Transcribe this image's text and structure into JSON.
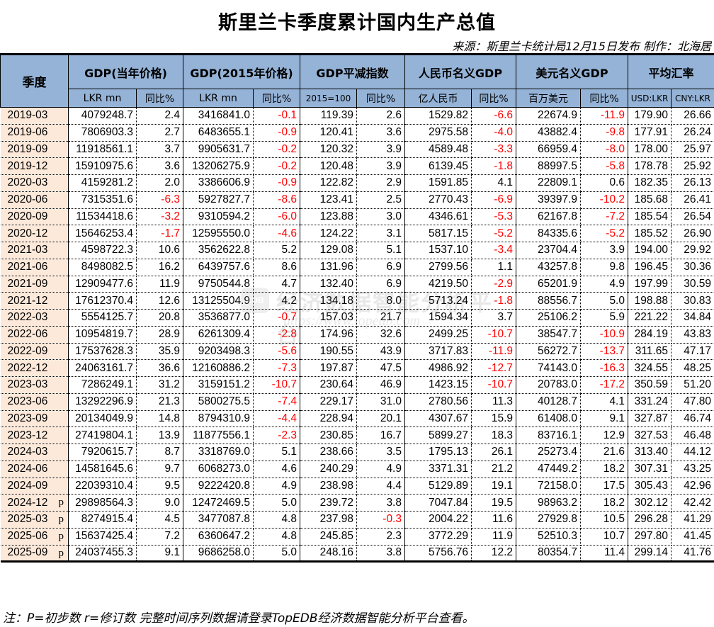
{
  "title": "斯里兰卡季度累计国内生产总值",
  "source": "来源：斯里兰卡统计局12月15日发布 制作：北海居",
  "header": {
    "quarter": "季度",
    "groups": [
      {
        "label": "GDP(当年价格)",
        "sub": [
          "LKR mn",
          "同比%"
        ]
      },
      {
        "label": "GDP(2015年价格)",
        "sub": [
          "LKR mn",
          "同比%"
        ]
      },
      {
        "label": "GDP平减指数",
        "sub": [
          "2015=100",
          "同比%"
        ]
      },
      {
        "label": "人民币名义GDP",
        "sub": [
          "亿人民币",
          "同比%"
        ]
      },
      {
        "label": "美元名义GDP",
        "sub": [
          "百万美元",
          "同比%"
        ]
      },
      {
        "label": "平均汇率",
        "sub": [
          "USD:LKR",
          "CNY:LKR"
        ]
      }
    ]
  },
  "rows": [
    {
      "q": "2019-03",
      "flag": "",
      "v": [
        "4079248.7",
        "2.4",
        "3416841.0",
        "-0.1",
        "119.39",
        "2.6",
        "1529.82",
        "-6.6",
        "22674.9",
        "-11.9",
        "179.90",
        "26.66"
      ]
    },
    {
      "q": "2019-06",
      "flag": "",
      "v": [
        "7806903.3",
        "2.7",
        "6483655.1",
        "-0.9",
        "120.41",
        "3.6",
        "2975.58",
        "-4.0",
        "43882.4",
        "-9.8",
        "177.91",
        "26.24"
      ]
    },
    {
      "q": "2019-09",
      "flag": "",
      "v": [
        "11918561.1",
        "3.7",
        "9905631.7",
        "-0.2",
        "120.32",
        "3.9",
        "4589.48",
        "-3.3",
        "66959.4",
        "-8.0",
        "178.00",
        "25.97"
      ]
    },
    {
      "q": "2019-12",
      "flag": "",
      "v": [
        "15910975.6",
        "3.6",
        "13206275.9",
        "-0.2",
        "120.48",
        "3.9",
        "6139.45",
        "-1.8",
        "88997.5",
        "-5.8",
        "178.78",
        "25.92"
      ]
    },
    {
      "q": "2020-03",
      "flag": "",
      "v": [
        "4159281.2",
        "2.0",
        "3386606.9",
        "-0.9",
        "122.82",
        "2.9",
        "1591.85",
        "4.1",
        "22809.1",
        "0.6",
        "182.35",
        "26.13"
      ]
    },
    {
      "q": "2020-06",
      "flag": "",
      "v": [
        "7315351.6",
        "-6.3",
        "5927827.7",
        "-8.6",
        "123.41",
        "2.5",
        "2770.43",
        "-6.9",
        "39397.9",
        "-10.2",
        "185.68",
        "26.41"
      ]
    },
    {
      "q": "2020-09",
      "flag": "",
      "v": [
        "11534418.6",
        "-3.2",
        "9310594.2",
        "-6.0",
        "123.88",
        "3.0",
        "4346.61",
        "-5.3",
        "62167.8",
        "-7.2",
        "185.54",
        "26.54"
      ]
    },
    {
      "q": "2020-12",
      "flag": "",
      "v": [
        "15646253.4",
        "-1.7",
        "12595550.0",
        "-4.6",
        "124.22",
        "3.1",
        "5817.15",
        "-5.2",
        "84335.6",
        "-5.2",
        "185.52",
        "26.90"
      ]
    },
    {
      "q": "2021-03",
      "flag": "",
      "v": [
        "4598722.3",
        "10.6",
        "3562622.8",
        "5.2",
        "129.08",
        "5.1",
        "1537.10",
        "-3.4",
        "23704.4",
        "3.9",
        "194.00",
        "29.92"
      ]
    },
    {
      "q": "2021-06",
      "flag": "",
      "v": [
        "8498082.5",
        "16.2",
        "6439757.6",
        "8.6",
        "131.96",
        "6.9",
        "2799.56",
        "1.1",
        "43257.8",
        "9.8",
        "196.45",
        "30.36"
      ]
    },
    {
      "q": "2021-09",
      "flag": "",
      "v": [
        "12909477.6",
        "11.9",
        "9750544.8",
        "4.7",
        "132.40",
        "6.9",
        "4219.50",
        "-2.9",
        "65201.9",
        "4.9",
        "197.99",
        "30.59"
      ]
    },
    {
      "q": "2021-12",
      "flag": "",
      "v": [
        "17612370.4",
        "12.6",
        "13125504.9",
        "4.2",
        "134.18",
        "8.0",
        "5713.24",
        "-1.8",
        "88556.7",
        "5.0",
        "198.88",
        "30.83"
      ]
    },
    {
      "q": "2022-03",
      "flag": "",
      "v": [
        "5554125.7",
        "20.8",
        "3536877.0",
        "-0.7",
        "157.03",
        "21.7",
        "1594.34",
        "3.7",
        "25106.2",
        "5.9",
        "221.22",
        "34.84"
      ]
    },
    {
      "q": "2022-06",
      "flag": "",
      "v": [
        "10954819.7",
        "28.9",
        "6261309.4",
        "-2.8",
        "174.96",
        "32.6",
        "2499.25",
        "-10.7",
        "38547.7",
        "-10.9",
        "284.19",
        "43.83"
      ]
    },
    {
      "q": "2022-09",
      "flag": "",
      "v": [
        "17537628.3",
        "35.9",
        "9203498.3",
        "-5.6",
        "190.55",
        "43.9",
        "3717.83",
        "-11.9",
        "56272.7",
        "-13.7",
        "311.65",
        "47.17"
      ]
    },
    {
      "q": "2022-12",
      "flag": "",
      "v": [
        "24063161.7",
        "36.6",
        "12160886.2",
        "-7.3",
        "197.87",
        "47.5",
        "4986.92",
        "-12.7",
        "74143.0",
        "-16.3",
        "324.55",
        "48.25"
      ]
    },
    {
      "q": "2023-03",
      "flag": "",
      "v": [
        "7286249.1",
        "31.2",
        "3159151.2",
        "-10.7",
        "230.64",
        "46.9",
        "1423.15",
        "-10.7",
        "20783.0",
        "-17.2",
        "350.59",
        "51.20"
      ]
    },
    {
      "q": "2023-06",
      "flag": "",
      "v": [
        "13292296.9",
        "21.3",
        "5800275.5",
        "-7.4",
        "229.17",
        "31.0",
        "2780.56",
        "11.3",
        "40128.7",
        "4.1",
        "331.24",
        "47.80"
      ]
    },
    {
      "q": "2023-09",
      "flag": "",
      "v": [
        "20134049.9",
        "14.8",
        "8794310.9",
        "-4.4",
        "228.94",
        "20.1",
        "4307.67",
        "15.9",
        "61408.0",
        "9.1",
        "327.87",
        "46.74"
      ]
    },
    {
      "q": "2023-12",
      "flag": "",
      "v": [
        "27419804.1",
        "13.9",
        "11877556.1",
        "-2.3",
        "230.85",
        "16.7",
        "5899.27",
        "18.3",
        "83716.1",
        "12.9",
        "327.53",
        "46.48"
      ]
    },
    {
      "q": "2024-03",
      "flag": "",
      "v": [
        "7920615.7",
        "8.7",
        "3318769.0",
        "5.1",
        "238.66",
        "3.5",
        "1795.13",
        "26.1",
        "25273.4",
        "21.6",
        "313.40",
        "44.12"
      ]
    },
    {
      "q": "2024-06",
      "flag": "",
      "v": [
        "14581645.6",
        "9.7",
        "6068273.0",
        "4.6",
        "240.29",
        "4.9",
        "3371.31",
        "21.2",
        "47449.2",
        "18.2",
        "307.31",
        "43.25"
      ]
    },
    {
      "q": "2024-09",
      "flag": "",
      "v": [
        "22039310.4",
        "9.5",
        "9222420.8",
        "4.9",
        "238.98",
        "4.4",
        "5129.89",
        "19.1",
        "72158.0",
        "17.5",
        "305.43",
        "42.96"
      ]
    },
    {
      "q": "2024-12",
      "flag": "p",
      "v": [
        "29898564.3",
        "9.0",
        "12472469.5",
        "5.0",
        "239.72",
        "3.8",
        "7047.84",
        "19.5",
        "98963.2",
        "18.2",
        "302.12",
        "42.42"
      ]
    },
    {
      "q": "2025-03",
      "flag": "p",
      "v": [
        "8274915.4",
        "4.5",
        "3477087.8",
        "4.8",
        "237.98",
        "-0.3",
        "2004.22",
        "11.6",
        "27929.8",
        "10.5",
        "296.28",
        "41.29"
      ]
    },
    {
      "q": "2025-06",
      "flag": "p",
      "v": [
        "15637425.4",
        "7.2",
        "6360647.2",
        "4.8",
        "245.85",
        "2.3",
        "3772.29",
        "11.9",
        "52510.3",
        "10.7",
        "297.80",
        "41.45"
      ]
    },
    {
      "q": "2025-09",
      "flag": "p",
      "v": [
        "24037455.3",
        "9.1",
        "9686258.0",
        "5.0",
        "248.16",
        "3.8",
        "5756.76",
        "12.2",
        "80354.7",
        "11.4",
        "299.14",
        "41.76"
      ]
    }
  ],
  "watermark": {
    "logo": "EDB",
    "text": "经济数据智能分析平台",
    "url": "https://www.topedb.com"
  },
  "note": "注：P=初步数 r=修订数 完整时间序列数据请登录TopEDB经济数据智能分析平台查看。",
  "colors": {
    "header_bg": "#95b3d7",
    "quarter_bg": "#fde9d9",
    "negative": "#ff0000"
  }
}
